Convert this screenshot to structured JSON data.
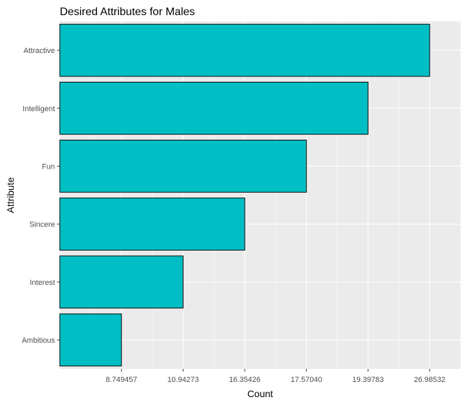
{
  "chart_data": {
    "type": "bar",
    "orientation": "horizontal",
    "title": "Desired Attributes for Males",
    "xlabel": "Count",
    "ylabel": "Attribute",
    "categories": [
      "Attractive",
      "Intelligent",
      "Fun",
      "Sincere",
      "Interest",
      "Ambitious"
    ],
    "values": [
      26.98532,
      19.39783,
      17.5704,
      16.35426,
      10.94273,
      8.749457
    ],
    "x_tick_labels": [
      "8.749457",
      "10.94273",
      "16.35426",
      "17.57040",
      "19.39783",
      "26.98532"
    ],
    "x_axis_kind": "discrete-rank-scale",
    "grid": true,
    "legend": "none",
    "colors": {
      "bar_fill": "#00BFC4",
      "bar_stroke": "#000000",
      "panel_background": "#EBEBEB",
      "grid": "#FFFFFF"
    }
  }
}
